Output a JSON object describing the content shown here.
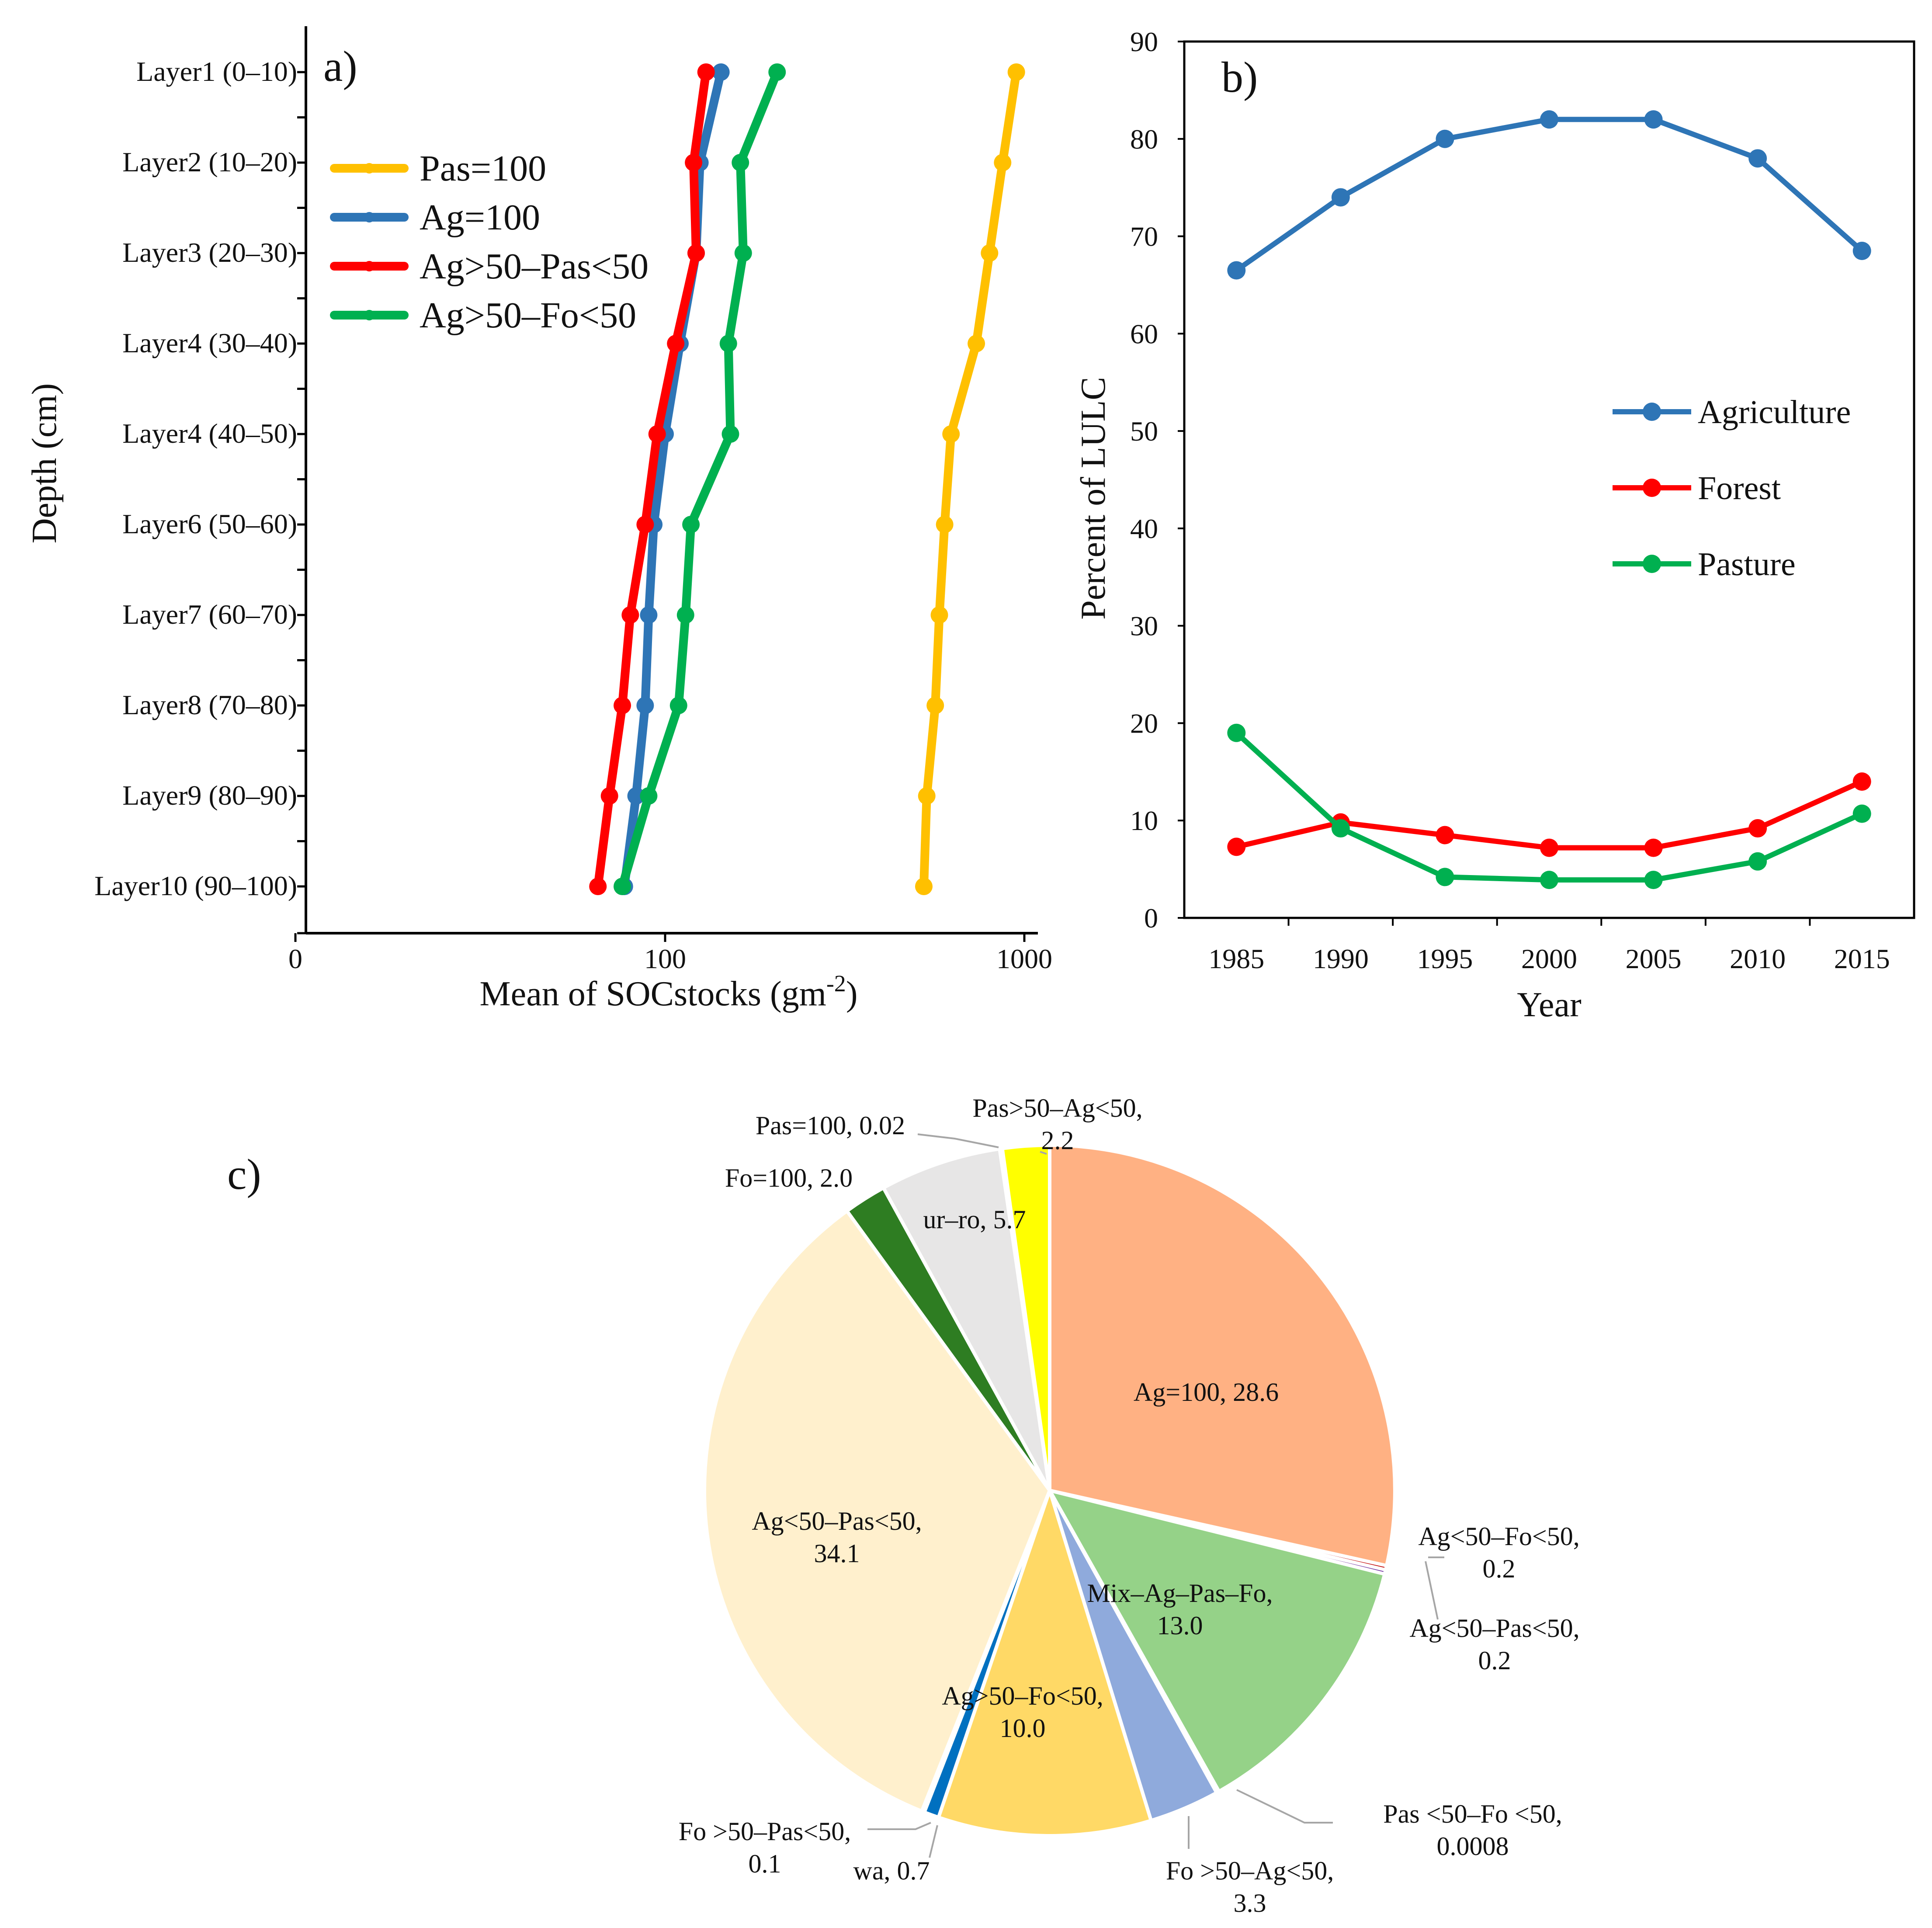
{
  "chart_data": [
    {
      "panel": "a)",
      "type": "line",
      "xscale": "log",
      "xlabel_main": "Mean of SOCstocks (gm",
      "xlabel_sup": "-2",
      "xlabel_close": ")",
      "ylabel": "Depth (cm)",
      "xticks": [
        "0",
        "100",
        "1000"
      ],
      "categories": [
        "Layer1 (0–10)",
        "Layer2 (10–20)",
        "Layer3 (20–30)",
        "Layer4 (30–40)",
        "Layer4 (40–50)",
        "Layer6 (50–60)",
        "Layer7 (60–70)",
        "Layer8 (70–80)",
        "Layer9 (80–90)",
        "Layer10 (90–100)"
      ],
      "legend_position": "top-left",
      "series": [
        {
          "name": "Pas=100",
          "color": "#FFC000",
          "values": [
            950,
            870,
            800,
            735,
            625,
            600,
            580,
            565,
            535,
            525
          ]
        },
        {
          "name": "Ag=100",
          "color": "#2E75B6",
          "values": [
            143,
            125,
            122,
            110,
            100,
            93,
            90,
            88,
            83,
            77
          ]
        },
        {
          "name": "Ag>50–Pas<50",
          "color": "#FF0000",
          "values": [
            130,
            120,
            122,
            107,
            95,
            88,
            80,
            76,
            70,
            65
          ]
        },
        {
          "name": "Ag>50–Fo<50",
          "color": "#00B050",
          "values": [
            205,
            162,
            165,
            150,
            152,
            118,
            114,
            109,
            90,
            76
          ]
        }
      ]
    },
    {
      "panel": "b)",
      "type": "line",
      "xlabel": "Year",
      "ylabel": "Percent of LULC",
      "categories": [
        "1985",
        "1990",
        "1995",
        "2000",
        "2005",
        "2010",
        "2015"
      ],
      "ylim": [
        0,
        90
      ],
      "yticks": [
        "0",
        "10",
        "20",
        "30",
        "40",
        "50",
        "60",
        "70",
        "80",
        "90"
      ],
      "legend_position": "middle-right",
      "series": [
        {
          "name": "Agriculture",
          "color": "#2E75B6",
          "values": [
            66.5,
            74,
            80,
            82,
            82,
            78,
            68.5
          ]
        },
        {
          "name": "Forest",
          "color": "#FF0000",
          "values": [
            7.3,
            9.8,
            8.5,
            7.2,
            7.2,
            9.2,
            14
          ]
        },
        {
          "name": "Pasture",
          "color": "#00B050",
          "values": [
            19,
            9.2,
            4.2,
            3.9,
            3.9,
            5.8,
            10.7
          ]
        }
      ]
    },
    {
      "panel": "c)",
      "type": "pie",
      "slices": [
        {
          "name": "Ag=100",
          "value": 28.6,
          "color": "#FFB183",
          "label": "Ag=100, 28.6",
          "label_lines": [
            "Ag=100, 28.6"
          ]
        },
        {
          "name": "Ag<50–Fo<50",
          "value": 0.2,
          "color": "#C00000",
          "label": "Ag<50–Fo<50, 0.2",
          "label_lines": [
            "Ag<50–Fo<50,",
            "0.2"
          ]
        },
        {
          "name": "Ag<50–Pas<50",
          "value": 0.2,
          "color": "#7030A0",
          "label": "Ag<50–Pas<50, 0.2",
          "label_lines": [
            "Ag<50–Pas<50,",
            "0.2"
          ]
        },
        {
          "name": "Mix–Ag–Pas–Fo",
          "value": 13.0,
          "color": "#95D288",
          "label": "Mix–Ag–Pas–Fo, 13.0",
          "label_lines": [
            "Mix–Ag–Pas–Fo,",
            "13.0"
          ]
        },
        {
          "name": "Pas <50–Fo <50",
          "value": 0.0008,
          "color": "#A6A6A6",
          "label": "Pas <50–Fo <50, 0.0008",
          "label_lines": [
            "Pas <50–Fo <50,",
            "0.0008"
          ]
        },
        {
          "name": "Fo >50–Ag<50",
          "value": 3.3,
          "color": "#8FAADC",
          "label": "Fo >50–Ag<50, 3.3",
          "label_lines": [
            "Fo >50–Ag<50,",
            "3.3"
          ]
        },
        {
          "name": "Ag>50–Fo<50",
          "value": 10.0,
          "color": "#FFD966",
          "label": "Ag>50–Fo<50, 10.0",
          "label_lines": [
            "Ag>50–Fo<50,",
            "10.0"
          ]
        },
        {
          "name": "wa",
          "value": 0.7,
          "color": "#0070C0",
          "label": "wa, 0.7",
          "label_lines": [
            "wa, 0.7"
          ]
        },
        {
          "name": "Fo >50–Pas<50",
          "value": 0.1,
          "color": "#C00000",
          "label": "Fo >50–Pas<50, 0.1",
          "label_lines": [
            "Fo >50–Pas<50,",
            "0.1"
          ]
        },
        {
          "name": "Ag<50–Pas<50",
          "value": 34.1,
          "color": "#FFF0CD",
          "label": "Ag<50–Pas<50, 34.1",
          "label_lines": [
            "Ag<50–Pas<50,",
            "34.1"
          ]
        },
        {
          "name": "Fo=100",
          "value": 2.0,
          "color": "#2E7D22",
          "label": "Fo=100, 2.0",
          "label_lines": [
            "Fo=100, 2.0"
          ]
        },
        {
          "name": "ur–ro",
          "value": 5.7,
          "color": "#E7E6E6",
          "label": "ur–ro, 5.7",
          "label_lines": [
            "ur–ro, 5.7"
          ]
        },
        {
          "name": "Pas=100",
          "value": 0.02,
          "color": "#A6A6A6",
          "label": "Pas=100, 0.02",
          "label_lines": [
            "Pas=100, 0.02"
          ]
        },
        {
          "name": "Pas>50–Ag<50",
          "value": 2.2,
          "color": "#FFFF00",
          "label": "Pas>50–Ag<50, 2.2",
          "label_lines": [
            "Pas>50–Ag<50,",
            "2.2"
          ]
        }
      ]
    }
  ]
}
